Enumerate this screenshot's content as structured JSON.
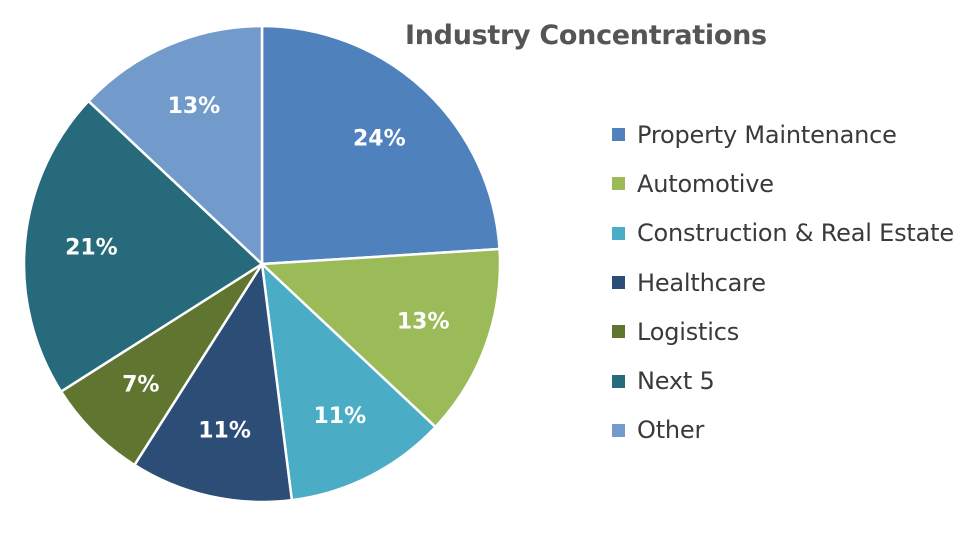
{
  "chart_data": {
    "type": "pie",
    "title": "Industry Concentrations",
    "legend_position": "right",
    "slices": [
      {
        "name": "Property Maintenance",
        "value": 24,
        "label": "24%",
        "color": "#4f81bd"
      },
      {
        "name": "Automotive",
        "value": 13,
        "label": "13%",
        "color": "#9bbb59"
      },
      {
        "name": "Construction & Real Estate",
        "value": 11,
        "label": "11%",
        "color": "#4bacc6"
      },
      {
        "name": "Healthcare",
        "value": 11,
        "label": "11%",
        "color": "#2c4d75"
      },
      {
        "name": "Logistics",
        "value": 7,
        "label": "7%",
        "color": "#5f7530"
      },
      {
        "name": "Next 5",
        "value": 21,
        "label": "21%",
        "color": "#276a7c"
      },
      {
        "name": "Other",
        "value": 13,
        "label": "13%",
        "color": "#729aca"
      }
    ]
  }
}
